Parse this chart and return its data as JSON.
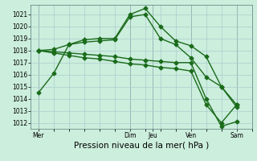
{
  "title": "",
  "xlabel": "Pression niveau de la mer( hPa )",
  "ylabel": "",
  "background_color": "#cceedd",
  "grid_color": "#aacccc",
  "line_color": "#1a6b1a",
  "ylim": [
    1011.5,
    1021.8
  ],
  "yticks": [
    1012,
    1013,
    1014,
    1015,
    1016,
    1017,
    1018,
    1019,
    1020,
    1021
  ],
  "x_day_labels": [
    "Mer",
    "Dim",
    "Jeu",
    "Ven",
    "Sam"
  ],
  "x_day_positions": [
    0,
    6,
    7.5,
    10,
    13
  ],
  "xlim": [
    -0.5,
    14.0
  ],
  "lines": [
    {
      "x": [
        0,
        1,
        2,
        3,
        4,
        5,
        6,
        7,
        8,
        9,
        10,
        11,
        12,
        13
      ],
      "y": [
        1014.5,
        1016.1,
        1018.5,
        1018.9,
        1019.0,
        1019.0,
        1021.0,
        1021.5,
        1020.0,
        1018.8,
        1018.4,
        1017.5,
        1015.0,
        1013.3
      ]
    },
    {
      "x": [
        0,
        1,
        2,
        3,
        4,
        5,
        6,
        7,
        8,
        9,
        10,
        11,
        12,
        13
      ],
      "y": [
        1018.0,
        1018.1,
        1018.5,
        1018.7,
        1018.8,
        1018.9,
        1020.8,
        1021.0,
        1019.0,
        1018.5,
        1017.4,
        1015.8,
        1015.0,
        1013.5
      ]
    },
    {
      "x": [
        0,
        1,
        2,
        3,
        4,
        5,
        6,
        7,
        8,
        9,
        10,
        11,
        12,
        13
      ],
      "y": [
        1018.0,
        1017.9,
        1017.8,
        1017.7,
        1017.6,
        1017.5,
        1017.3,
        1017.2,
        1017.1,
        1017.0,
        1017.0,
        1014.0,
        1011.7,
        1012.1
      ]
    },
    {
      "x": [
        0,
        1,
        2,
        3,
        4,
        5,
        6,
        7,
        8,
        9,
        10,
        11,
        12,
        13
      ],
      "y": [
        1018.0,
        1017.8,
        1017.6,
        1017.4,
        1017.3,
        1017.1,
        1016.9,
        1016.8,
        1016.6,
        1016.5,
        1016.3,
        1013.5,
        1012.0,
        1013.5
      ]
    }
  ],
  "marker": "D",
  "marker_size": 2.5,
  "line_width": 1.0,
  "tick_fontsize": 5.5,
  "xlabel_fontsize": 7.5,
  "vline_color": "#557777",
  "vline_positions": [
    0,
    6,
    7.5,
    10,
    13
  ]
}
